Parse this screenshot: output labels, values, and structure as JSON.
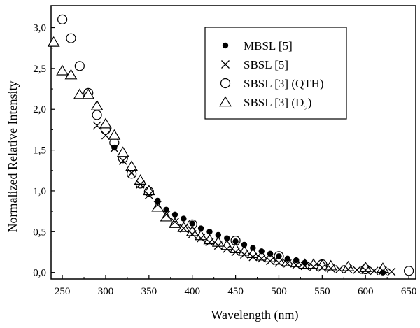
{
  "chart_data": {
    "type": "scatter",
    "xlabel": "Wavelength (nm)",
    "ylabel": "Normalized Relative Intensity",
    "xlim": [
      237,
      658
    ],
    "ylim": [
      -0.08,
      3.27
    ],
    "x_ticks": [
      250,
      300,
      350,
      400,
      450,
      500,
      550,
      600,
      650
    ],
    "x_tick_labels": [
      "250",
      "300",
      "350",
      "400",
      "450",
      "500",
      "550",
      "600",
      "650"
    ],
    "y_ticks": [
      0.0,
      0.5,
      1.0,
      1.5,
      2.0,
      2.5,
      3.0
    ],
    "y_tick_labels": [
      "0,0",
      "0,5",
      "1,0",
      "1,5",
      "2,0",
      "2,5",
      "3,0"
    ],
    "grid": false,
    "legend_position": "top-right",
    "series": [
      {
        "name": "MBSL [5]",
        "marker": "filled-circle",
        "points": [
          [
            310,
            1.53
          ],
          [
            360,
            0.88
          ],
          [
            370,
            0.77
          ],
          [
            380,
            0.71
          ],
          [
            390,
            0.66
          ],
          [
            400,
            0.6
          ],
          [
            410,
            0.54
          ],
          [
            420,
            0.5
          ],
          [
            430,
            0.46
          ],
          [
            440,
            0.42
          ],
          [
            450,
            0.38
          ],
          [
            460,
            0.34
          ],
          [
            470,
            0.3
          ],
          [
            480,
            0.26
          ],
          [
            490,
            0.23
          ],
          [
            500,
            0.2
          ],
          [
            510,
            0.17
          ],
          [
            520,
            0.15
          ],
          [
            530,
            0.12
          ],
          [
            620,
            0.0
          ]
        ]
      },
      {
        "name": "SBSL [5]",
        "marker": "x",
        "points": [
          [
            290,
            1.8
          ],
          [
            300,
            1.68
          ],
          [
            310,
            1.52
          ],
          [
            320,
            1.37
          ],
          [
            330,
            1.22
          ],
          [
            340,
            1.08
          ],
          [
            350,
            0.95
          ],
          [
            360,
            0.83
          ],
          [
            370,
            0.71
          ],
          [
            380,
            0.62
          ],
          [
            390,
            0.54
          ],
          [
            400,
            0.47
          ],
          [
            410,
            0.42
          ],
          [
            420,
            0.37
          ],
          [
            430,
            0.33
          ],
          [
            440,
            0.29
          ],
          [
            450,
            0.25
          ],
          [
            460,
            0.22
          ],
          [
            470,
            0.19
          ],
          [
            480,
            0.17
          ],
          [
            490,
            0.14
          ],
          [
            500,
            0.12
          ],
          [
            510,
            0.11
          ],
          [
            520,
            0.09
          ],
          [
            530,
            0.08
          ],
          [
            540,
            0.07
          ],
          [
            550,
            0.06
          ],
          [
            560,
            0.05
          ],
          [
            570,
            0.04
          ],
          [
            580,
            0.04
          ],
          [
            590,
            0.03
          ],
          [
            600,
            0.03
          ],
          [
            610,
            0.02
          ],
          [
            620,
            0.02
          ],
          [
            630,
            0.01
          ]
        ]
      },
      {
        "name": "SBSL [3] (QTH)",
        "marker": "open-circle",
        "points": [
          [
            250,
            3.1
          ],
          [
            260,
            2.87
          ],
          [
            270,
            2.53
          ],
          [
            280,
            2.2
          ],
          [
            290,
            1.93
          ],
          [
            300,
            1.75
          ],
          [
            310,
            1.59
          ],
          [
            320,
            1.4
          ],
          [
            330,
            1.21
          ],
          [
            340,
            1.09
          ],
          [
            350,
            0.99
          ],
          [
            400,
            0.59
          ],
          [
            450,
            0.39
          ],
          [
            500,
            0.2
          ],
          [
            550,
            0.1
          ],
          [
            600,
            0.04
          ],
          [
            650,
            0.02
          ]
        ]
      },
      {
        "name": "SBSL [3] (D₂)",
        "marker": "open-triangle",
        "points": [
          [
            240,
            2.82
          ],
          [
            250,
            2.47
          ],
          [
            260,
            2.42
          ],
          [
            270,
            2.18
          ],
          [
            280,
            2.18
          ],
          [
            290,
            2.04
          ],
          [
            300,
            1.82
          ],
          [
            310,
            1.68
          ],
          [
            320,
            1.47
          ],
          [
            330,
            1.3
          ],
          [
            340,
            1.13
          ],
          [
            350,
            1.0
          ],
          [
            360,
            0.8
          ],
          [
            370,
            0.68
          ],
          [
            380,
            0.6
          ],
          [
            390,
            0.55
          ],
          [
            400,
            0.5
          ],
          [
            410,
            0.45
          ],
          [
            420,
            0.4
          ],
          [
            430,
            0.37
          ],
          [
            440,
            0.33
          ],
          [
            450,
            0.29
          ],
          [
            460,
            0.26
          ],
          [
            470,
            0.23
          ],
          [
            480,
            0.2
          ],
          [
            490,
            0.18
          ],
          [
            500,
            0.15
          ],
          [
            510,
            0.13
          ],
          [
            520,
            0.12
          ],
          [
            530,
            0.1
          ],
          [
            540,
            0.1
          ],
          [
            550,
            0.09
          ],
          [
            560,
            0.08
          ],
          [
            580,
            0.07
          ],
          [
            600,
            0.06
          ],
          [
            620,
            0.05
          ]
        ]
      }
    ]
  }
}
